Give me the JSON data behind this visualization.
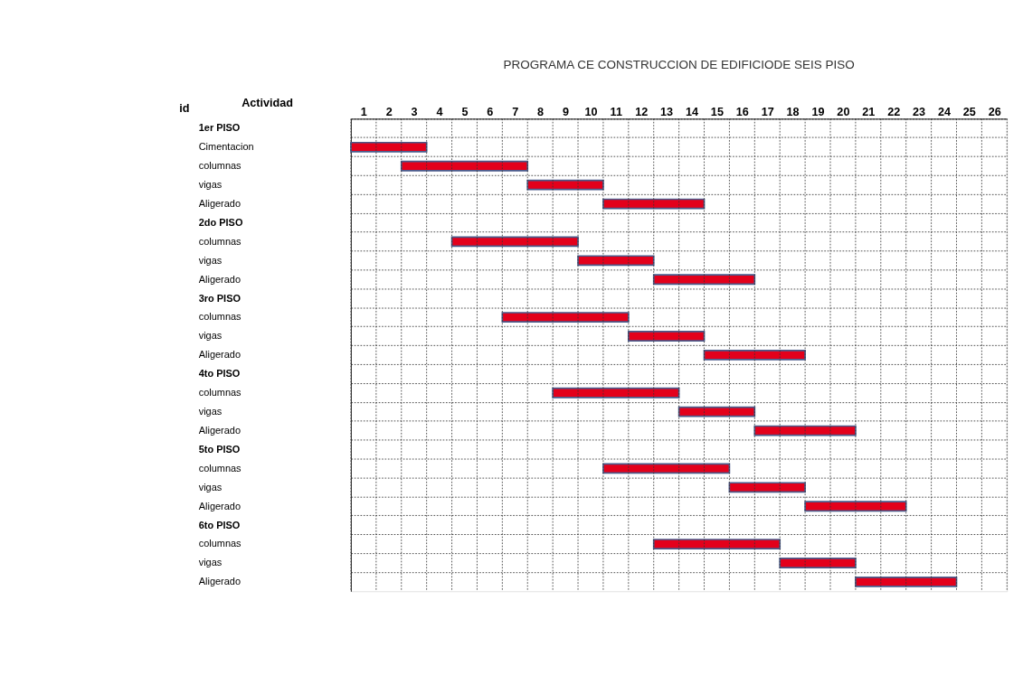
{
  "chart_data": {
    "type": "bar",
    "orientation": "horizontal",
    "title": "PROGRAMA CE CONSTRUCCION DE EDIFICIODE SEIS PISO",
    "ylabel": "Actividad",
    "annotations": [
      "id"
    ],
    "categories": [
      "1er PISO",
      "Cimentacion",
      "columnas",
      "vigas",
      "Aligerado",
      "2do PISO",
      "columnas",
      "vigas",
      "Aligerado",
      "3ro PISO",
      "columnas",
      "vigas",
      "Aligerado",
      "4to PISO",
      "columnas",
      "vigas",
      "Aligerado",
      "5to PISO",
      "columnas",
      "vigas",
      "Aligerado",
      "6to PISO",
      "columnas",
      "vigas",
      "Aligerado"
    ],
    "base": [
      null,
      0,
      2,
      7,
      10,
      null,
      4,
      9,
      12,
      null,
      6,
      11,
      14,
      null,
      8,
      13,
      16,
      null,
      10,
      15,
      18,
      null,
      12,
      17,
      20
    ],
    "values": [
      null,
      3,
      5,
      3,
      4,
      null,
      5,
      3,
      4,
      null,
      5,
      3,
      4,
      null,
      5,
      3,
      4,
      null,
      5,
      3,
      4,
      null,
      5,
      3,
      4
    ],
    "color": "#e3001b",
    "xlim": [
      0,
      26
    ],
    "xticks": [
      {
        "value": 0.5,
        "label": "1"
      },
      {
        "value": 1.5,
        "label": "2"
      },
      {
        "value": 2.5,
        "label": "3"
      },
      {
        "value": 3.5,
        "label": "4"
      },
      {
        "value": 4.5,
        "label": "5"
      },
      {
        "value": 5.5,
        "label": "6"
      },
      {
        "value": 6.5,
        "label": "7"
      },
      {
        "value": 7.5,
        "label": "8"
      },
      {
        "value": 8.5,
        "label": "9"
      },
      {
        "value": 9.5,
        "label": "10"
      },
      {
        "value": 10.5,
        "label": "11"
      },
      {
        "value": 11.5,
        "label": "12"
      },
      {
        "value": 12.5,
        "label": "13"
      },
      {
        "value": 13.5,
        "label": "14"
      },
      {
        "value": 14.5,
        "label": "15"
      },
      {
        "value": 15.5,
        "label": "16"
      },
      {
        "value": 16.5,
        "label": "17"
      },
      {
        "value": 17.5,
        "label": "18"
      },
      {
        "value": 18.5,
        "label": "19"
      },
      {
        "value": 19.5,
        "label": "20"
      },
      {
        "value": 20.5,
        "label": "21"
      },
      {
        "value": 21.5,
        "label": "22"
      },
      {
        "value": 22.5,
        "label": "23"
      },
      {
        "value": 23.5,
        "label": "24"
      },
      {
        "value": 24.5,
        "label": "25"
      },
      {
        "value": 25.5,
        "label": "26"
      }
    ],
    "grid": true
  }
}
